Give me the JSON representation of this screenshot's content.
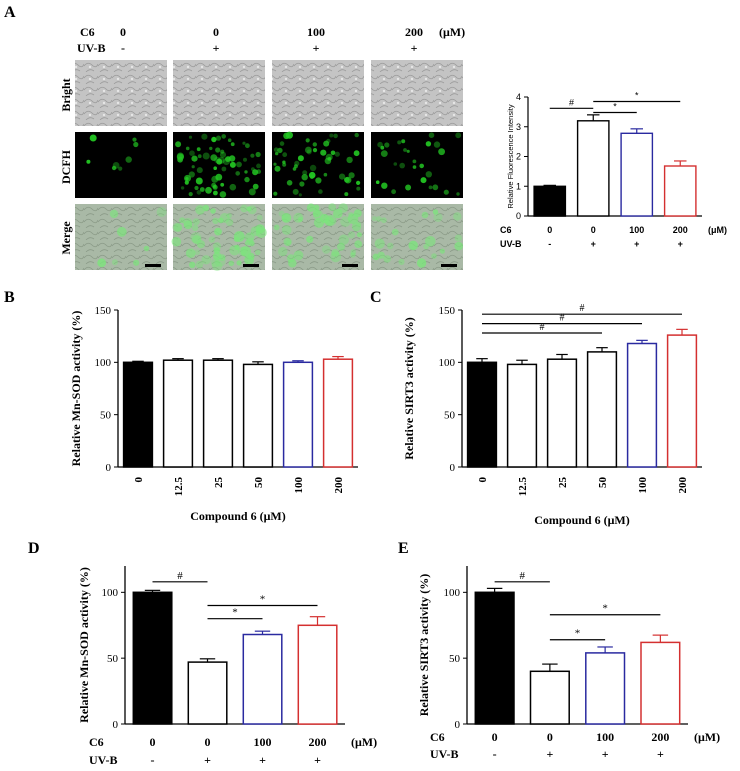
{
  "panel_letters": {
    "a": "A",
    "b": "B",
    "c": "C",
    "d": "D",
    "e": "E"
  },
  "treatment_table": {
    "c6_label": "C6",
    "uvb_label": "UV-B",
    "c6_values": [
      "0",
      "0",
      "100",
      "200"
    ],
    "uvb_values": [
      "-",
      "+",
      "+",
      "+"
    ],
    "unit": "(μM)"
  },
  "micrograph_rows": [
    "Bright",
    "DCFH",
    "Merge"
  ],
  "colors": {
    "black_bar": "#000000",
    "blue_bar": "#2a2aa0",
    "red_bar": "#d43030",
    "fluor_green": "#22c522"
  },
  "chart_data": [
    {
      "id": "A",
      "type": "bar",
      "ylabel": "Relative Fluorescence Intensity",
      "ylim": [
        0,
        4
      ],
      "yticks": [
        "0",
        "1",
        "2",
        "3",
        "4"
      ],
      "categories": [
        "C6 0 / UV-B -",
        "C6 0 / UV-B +",
        "C6 100 / UV-B +",
        "C6 200 / UV-B +"
      ],
      "values": [
        1.0,
        3.2,
        2.78,
        1.68
      ],
      "errors": [
        0.03,
        0.2,
        0.15,
        0.17
      ],
      "bar_styles": [
        "black",
        "white",
        "blue",
        "red"
      ],
      "significance": [
        "#",
        "*",
        "*"
      ],
      "row_labels": {
        "c6": "C6",
        "uvb": "UV-B"
      },
      "c6_values": [
        "0",
        "0",
        "100",
        "200"
      ],
      "uvb_values": [
        "-",
        "+",
        "+",
        "+"
      ],
      "unit": "(μM)"
    },
    {
      "id": "B",
      "type": "bar",
      "ylabel": "Relative Mn-SOD activity (%)",
      "xlabel": "Compound 6 (μM)",
      "ylim": [
        0,
        150
      ],
      "yticks": [
        "0",
        "50",
        "100",
        "150"
      ],
      "categories": [
        "0",
        "12.5",
        "25",
        "50",
        "100",
        "200"
      ],
      "values": [
        100,
        102,
        102,
        98,
        100,
        103
      ],
      "errors": [
        1,
        1.5,
        1.5,
        2.5,
        1.5,
        2.5
      ],
      "bar_styles": [
        "black",
        "white",
        "white",
        "white",
        "blue",
        "red"
      ]
    },
    {
      "id": "C",
      "type": "bar",
      "ylabel": "Relative SIRT3 activity (%)",
      "xlabel": "Compound 6 (μM)",
      "ylim": [
        0,
        150
      ],
      "yticks": [
        "0",
        "50",
        "100",
        "150"
      ],
      "categories": [
        "0",
        "12.5",
        "25",
        "50",
        "100",
        "200"
      ],
      "values": [
        100,
        98,
        103,
        110,
        118,
        126
      ],
      "errors": [
        3.5,
        4,
        4.5,
        4,
        3,
        5.5
      ],
      "bar_styles": [
        "black",
        "white",
        "white",
        "white",
        "blue",
        "red"
      ],
      "significance": [
        "#",
        "#",
        "#"
      ]
    },
    {
      "id": "D",
      "type": "bar",
      "ylabel": "Relative Mn-SOD  activity (%)",
      "ylim": [
        0,
        120
      ],
      "yticks": [
        "0",
        "50",
        "100"
      ],
      "categories": [
        "C6 0 / UV-B -",
        "C6 0 / UV-B +",
        "C6 100 / UV-B +",
        "C6 200 / UV-B +"
      ],
      "values": [
        100,
        47,
        68,
        75
      ],
      "errors": [
        1.5,
        2.5,
        2.5,
        6.5
      ],
      "bar_styles": [
        "black",
        "white",
        "blue",
        "red"
      ],
      "significance": [
        "#",
        "*",
        "*"
      ],
      "row_labels": {
        "c6": "C6",
        "uvb": "UV-B"
      },
      "c6_values": [
        "0",
        "0",
        "100",
        "200"
      ],
      "uvb_values": [
        "-",
        "+",
        "+",
        "+"
      ],
      "unit": "(μM)"
    },
    {
      "id": "E",
      "type": "bar",
      "ylabel": "Relative SIRT3 activity (%)",
      "ylim": [
        0,
        120
      ],
      "yticks": [
        "0",
        "50",
        "100"
      ],
      "categories": [
        "C6 0 / UV-B -",
        "C6 0 / UV-B +",
        "C6 100 / UV-B +",
        "C6 200 / UV-B +"
      ],
      "values": [
        100,
        40,
        54,
        62
      ],
      "errors": [
        3,
        5.5,
        4.5,
        5.5
      ],
      "bar_styles": [
        "black",
        "white",
        "blue",
        "red"
      ],
      "significance": [
        "#",
        "*",
        "*"
      ],
      "row_labels": {
        "c6": "C6",
        "uvb": "UV-B"
      },
      "c6_values": [
        "0",
        "0",
        "100",
        "200"
      ],
      "uvb_values": [
        "-",
        "+",
        "+",
        "+"
      ],
      "unit": "(μM)"
    }
  ]
}
